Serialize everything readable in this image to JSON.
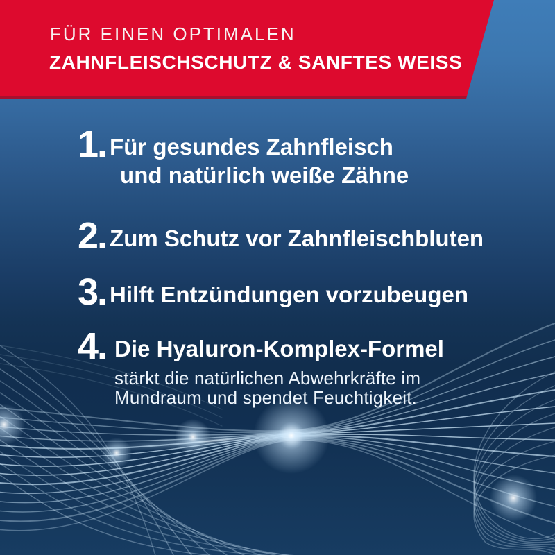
{
  "banner": {
    "line1": "FÜR EINEN OPTIMALEN",
    "line2": "ZAHNFLEISCHSCHUTZ & SANFTES WEISS"
  },
  "list": {
    "items": [
      {
        "number": "1.",
        "line1": "Für gesundes Zahnfleisch",
        "line2": "und natürlich weiße Zähne"
      },
      {
        "number": "2.",
        "line1": "Zum Schutz vor Zahnfleischbluten"
      },
      {
        "number": "3.",
        "line1": "Hilft Entzündungen vorzubeugen"
      },
      {
        "number": "4.",
        "line1": "Die Hyaluron-Komplex-Formel",
        "note_line1": "stärkt die natürlichen Abwehrkräfte im",
        "note_line2": "Mundraum und spendet Feuchtigkeit."
      }
    ]
  },
  "colors": {
    "banner_red": "#dd0a2e",
    "banner_red_dark": "#a6102f",
    "background_top_blue": "#3f7db8",
    "background_dark_navy": "#112e4e",
    "wave_line_blue": "#cfe8fa",
    "text_white": "#ffffff"
  }
}
